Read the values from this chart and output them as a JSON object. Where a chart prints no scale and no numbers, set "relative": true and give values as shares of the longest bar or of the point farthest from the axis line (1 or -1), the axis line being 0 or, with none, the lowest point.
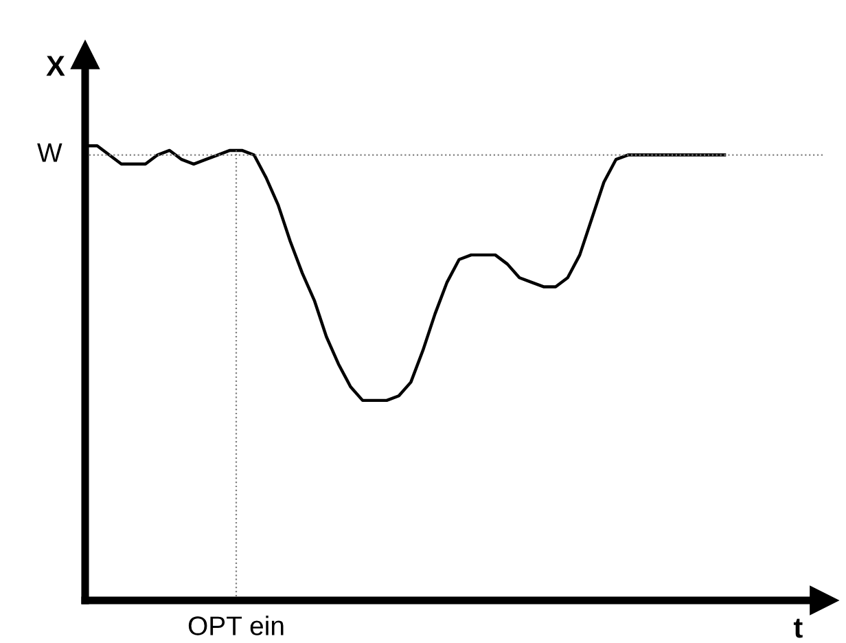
{
  "chart_data": {
    "type": "line",
    "relative": true,
    "xlabel": "t",
    "ylabel": "X",
    "annotations": [
      "OPT ein"
    ],
    "categories": [
      null,
      null,
      null,
      null,
      null,
      null,
      null,
      null,
      null,
      null,
      null,
      null,
      null,
      null,
      null,
      null,
      null,
      null,
      null,
      null,
      null,
      null,
      null,
      null,
      null,
      null,
      null,
      null,
      null,
      null,
      null,
      null,
      null,
      null,
      null,
      null,
      null,
      null,
      null,
      null,
      null,
      null,
      null,
      null,
      null,
      null,
      null,
      null,
      null,
      null,
      null,
      null,
      null,
      null
    ],
    "series": [
      {
        "color": "#000000",
        "values": [
          1.0,
          1.0,
          0.98,
          0.96,
          0.96,
          0.96,
          0.98,
          0.99,
          0.97,
          0.96,
          0.97,
          0.98,
          0.99,
          0.99,
          0.98,
          0.93,
          0.87,
          0.79,
          0.72,
          0.66,
          0.58,
          0.52,
          0.47,
          0.44,
          0.44,
          0.44,
          0.45,
          0.48,
          0.55,
          0.63,
          0.7,
          0.75,
          0.76,
          0.76,
          0.76,
          0.74,
          0.71,
          0.7,
          0.69,
          0.69,
          0.71,
          0.76,
          0.84,
          0.92,
          0.97,
          0.98,
          0.98,
          0.98,
          0.98,
          0.98,
          0.98,
          0.98,
          0.98,
          0.98
        ]
      }
    ],
    "ref_lines": [
      {
        "axis": "y",
        "value": 0.98,
        "label": "W",
        "color": "#808080",
        "line_style": "dotted"
      }
    ],
    "marker": "none",
    "line_style": "solid"
  }
}
